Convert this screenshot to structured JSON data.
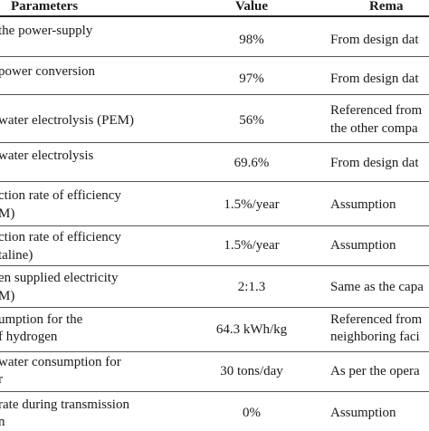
{
  "table": {
    "headers": {
      "parameters": "Parameters",
      "value": "Value",
      "remarks": "Rema"
    },
    "rows": [
      {
        "param": [
          "the power-supply"
        ],
        "value": "98%",
        "remark": [
          "From design dat"
        ]
      },
      {
        "param": [
          "power conversion"
        ],
        "value": "97%",
        "remark": [
          "From design dat"
        ]
      },
      {
        "param": [
          "water electrolysis (PEM)"
        ],
        "value": "56%",
        "remark": [
          "Referenced from",
          "the other compa"
        ]
      },
      {
        "param": [
          "water electrolysis"
        ],
        "value": "69.6%",
        "remark": [
          "From design dat"
        ]
      },
      {
        "param": [
          "ction rate of efficiency",
          "M)"
        ],
        "value": "1.5%/year",
        "remark": [
          "Assumption"
        ]
      },
      {
        "param": [
          "ction rate of efficiency",
          "taline)"
        ],
        "value": "1.5%/year",
        "remark": [
          "Assumption"
        ]
      },
      {
        "param": [
          "en supplied electricity",
          "M)"
        ],
        "value": "2:1.3",
        "remark": [
          "Same as the capa"
        ]
      },
      {
        "param": [
          "umption for the",
          "f hydrogen"
        ],
        "value": "64.3 kWh/kg",
        "remark": [
          "Referenced from",
          "neighboring faci"
        ]
      },
      {
        "param": [
          "water consumption for",
          "r"
        ],
        "value": "30 tons/day",
        "remark": [
          "As per the opera"
        ]
      },
      {
        "param": [
          "rate during transmission",
          "n"
        ],
        "value": "0%",
        "remark": [
          "Assumption"
        ]
      }
    ]
  }
}
